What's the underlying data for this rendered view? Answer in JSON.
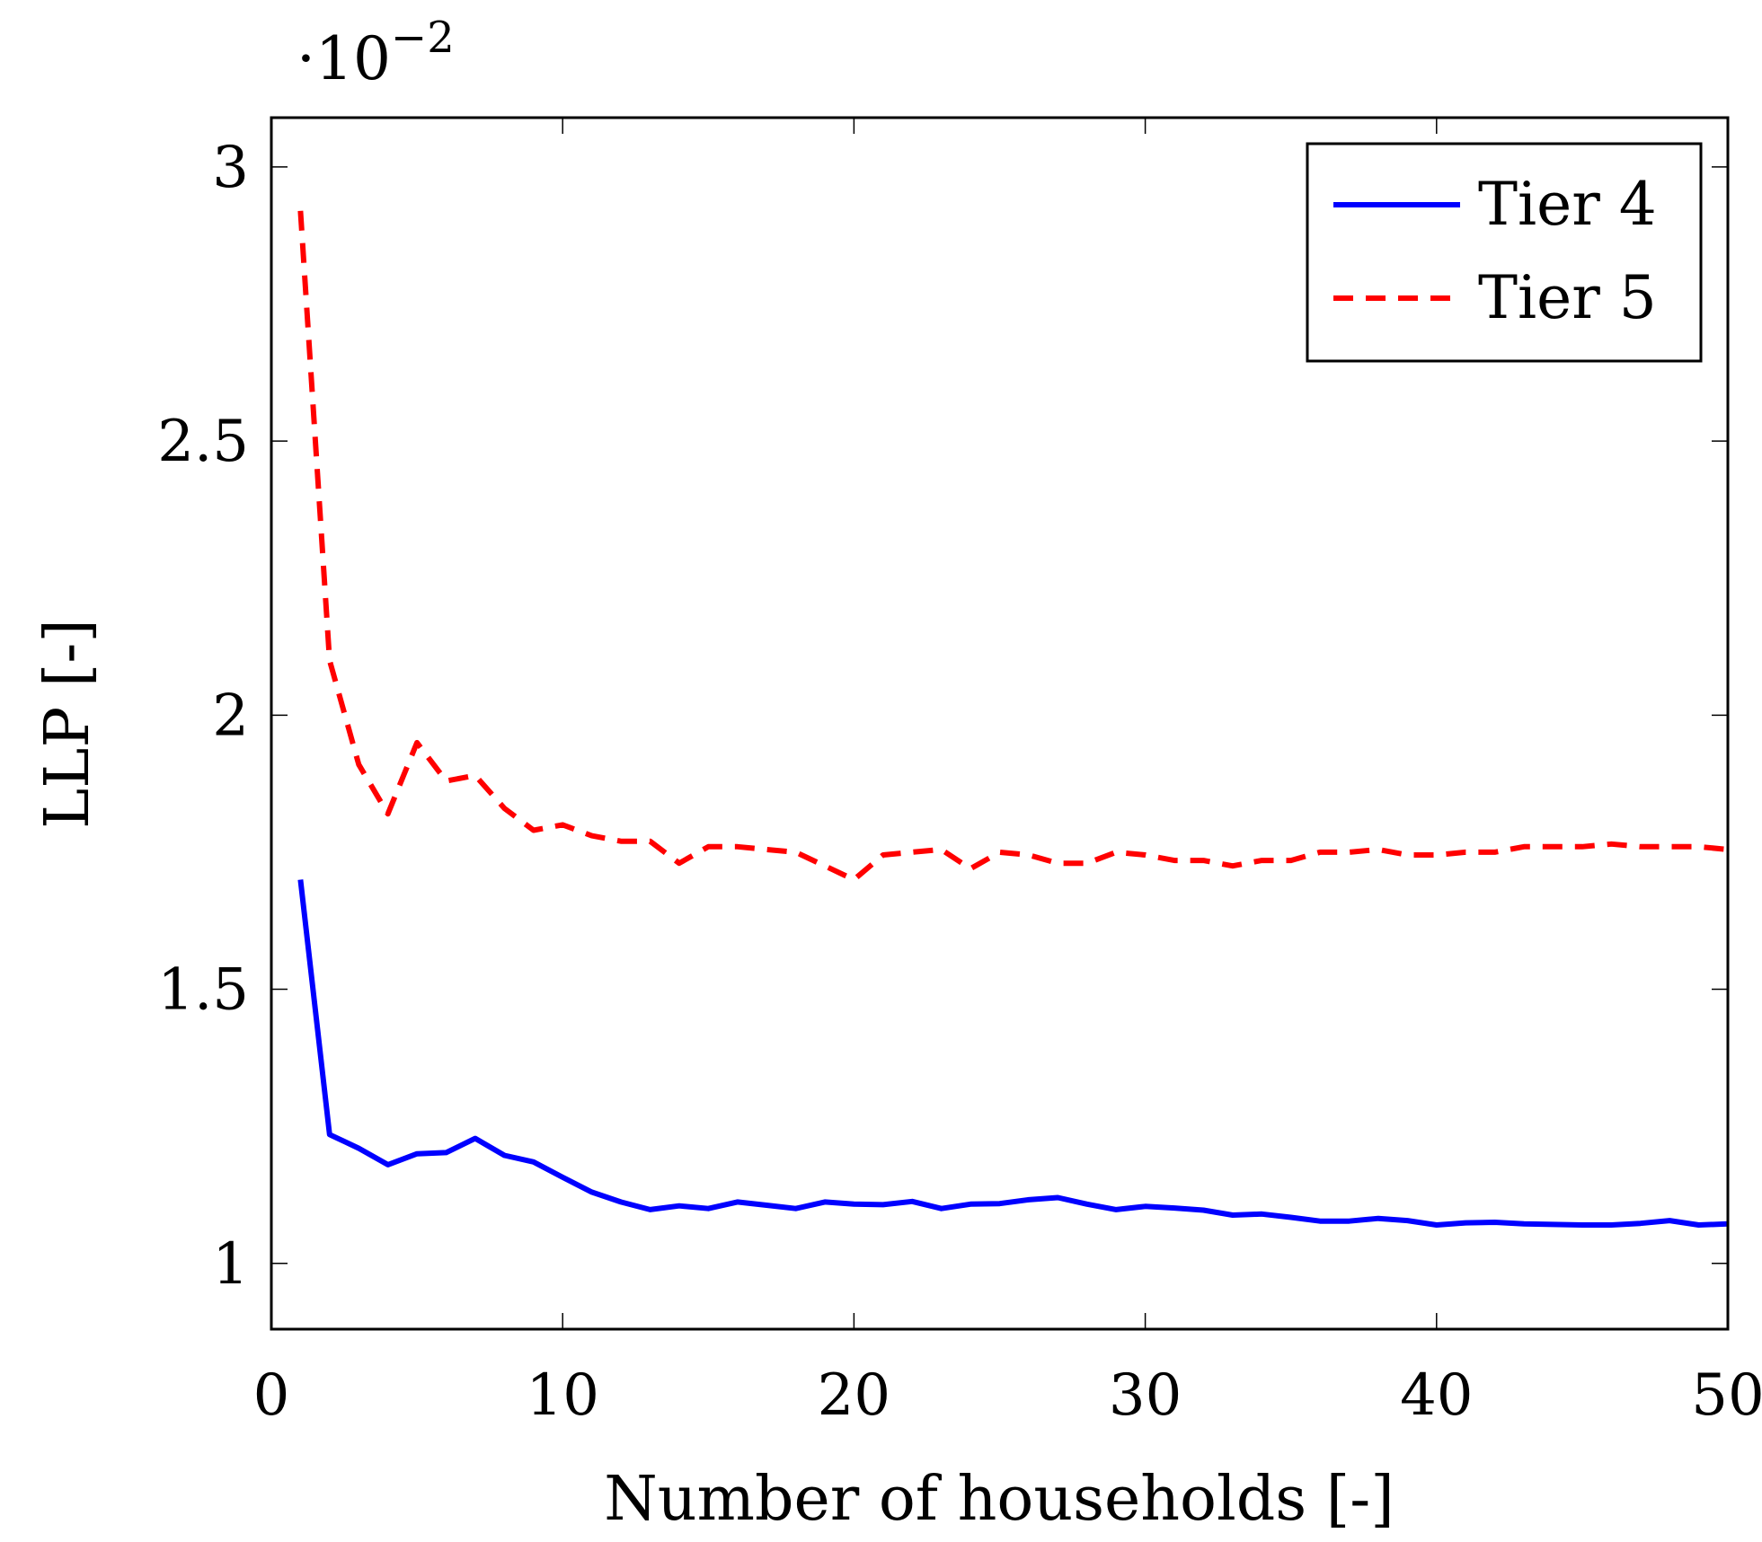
{
  "chart_data": {
    "type": "line",
    "title": "",
    "xlabel": "Number of households [-]",
    "ylabel": "LLP [-]",
    "y_multiplier": "·10",
    "y_multiplier_exponent": "−2",
    "xlim": [
      0,
      50
    ],
    "ylim": [
      0.88,
      3.09
    ],
    "xticks": [
      0,
      10,
      20,
      30,
      40,
      50
    ],
    "yticks": [
      1,
      1.5,
      2,
      2.5,
      3
    ],
    "xtick_labels": [
      "0",
      "10",
      "20",
      "30",
      "40",
      "50"
    ],
    "ytick_labels": [
      "1",
      "1.5",
      "2",
      "2.5",
      "3"
    ],
    "legend_position": "top-right",
    "series": [
      {
        "name": "Tier 4",
        "color": "#0000ff",
        "dash": "solid",
        "x": [
          1,
          2,
          3,
          4,
          5,
          6,
          7,
          8,
          9,
          10,
          11,
          12,
          13,
          14,
          15,
          16,
          17,
          18,
          19,
          20,
          21,
          22,
          23,
          24,
          25,
          26,
          27,
          28,
          29,
          30,
          31,
          32,
          33,
          34,
          35,
          36,
          37,
          38,
          39,
          40,
          41,
          42,
          43,
          44,
          45,
          46,
          47,
          48,
          49,
          50
        ],
        "values": [
          1.7,
          1.235,
          1.21,
          1.18,
          1.2,
          1.202,
          1.228,
          1.197,
          1.185,
          1.157,
          1.13,
          1.112,
          1.098,
          1.105,
          1.1,
          1.112,
          1.106,
          1.1,
          1.112,
          1.108,
          1.107,
          1.113,
          1.1,
          1.108,
          1.109,
          1.116,
          1.12,
          1.108,
          1.098,
          1.104,
          1.101,
          1.097,
          1.088,
          1.09,
          1.084,
          1.077,
          1.077,
          1.082,
          1.078,
          1.07,
          1.074,
          1.075,
          1.072,
          1.071,
          1.07,
          1.07,
          1.073,
          1.078,
          1.07,
          1.072
        ]
      },
      {
        "name": "Tier 5",
        "color": "#ff0000",
        "dash": "dashed",
        "x": [
          1,
          2,
          3,
          4,
          5,
          6,
          7,
          8,
          9,
          10,
          11,
          12,
          13,
          14,
          15,
          16,
          17,
          18,
          19,
          20,
          21,
          22,
          23,
          24,
          25,
          26,
          27,
          28,
          29,
          30,
          31,
          32,
          33,
          34,
          35,
          36,
          37,
          38,
          39,
          40,
          41,
          42,
          43,
          44,
          45,
          46,
          47,
          48,
          49,
          50
        ],
        "values": [
          2.92,
          2.1,
          1.91,
          1.82,
          1.95,
          1.88,
          1.89,
          1.83,
          1.79,
          1.8,
          1.78,
          1.77,
          1.77,
          1.73,
          1.76,
          1.76,
          1.755,
          1.75,
          1.725,
          1.7,
          1.745,
          1.75,
          1.755,
          1.72,
          1.75,
          1.745,
          1.73,
          1.73,
          1.75,
          1.745,
          1.735,
          1.735,
          1.725,
          1.735,
          1.735,
          1.75,
          1.75,
          1.755,
          1.745,
          1.745,
          1.75,
          1.75,
          1.76,
          1.76,
          1.76,
          1.765,
          1.76,
          1.76,
          1.76,
          1.755
        ]
      }
    ]
  }
}
